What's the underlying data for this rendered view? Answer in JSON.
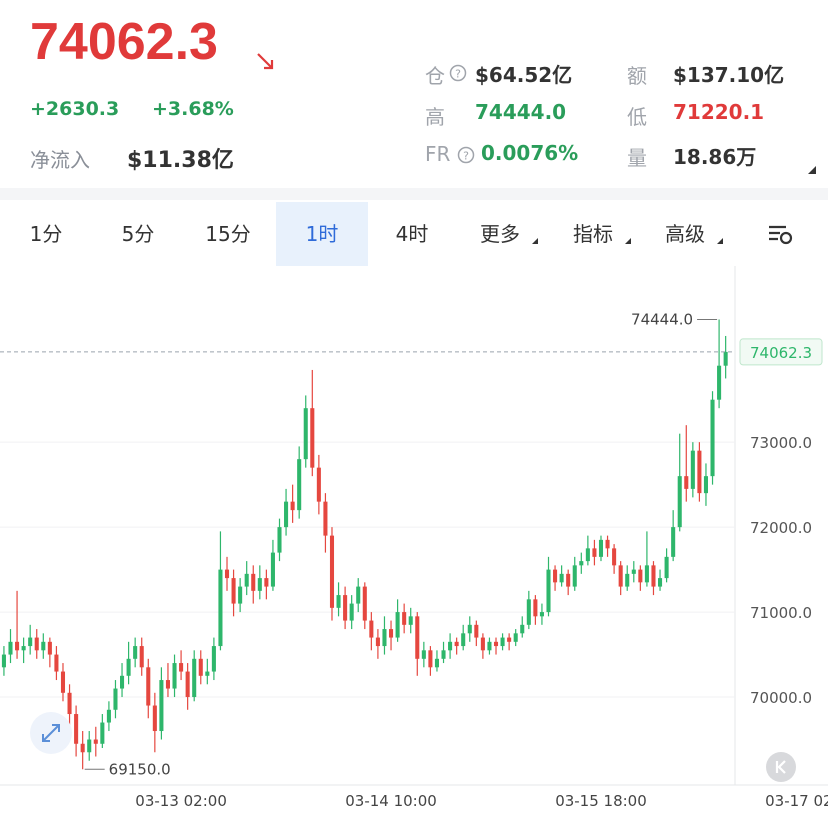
{
  "header": {
    "price": "74062.3",
    "change": "+2630.3",
    "change_pct": "+3.68%",
    "net_inflow_label": "净流入",
    "net_inflow": "$11.38亿",
    "stats": [
      {
        "label": "仓",
        "value": "$64.52亿"
      },
      {
        "label": "额",
        "value": "$137.10亿"
      },
      {
        "label": "高",
        "value": "74444.0"
      },
      {
        "label": "低",
        "value": "71220.1"
      },
      {
        "label": "FR",
        "value": "0.0076%"
      },
      {
        "label": "量",
        "value": "18.86万"
      }
    ]
  },
  "tabs": {
    "items": [
      "1分",
      "5分",
      "15分",
      "1时",
      "4时",
      "更多",
      "指标",
      "高级"
    ],
    "active": 3
  },
  "chart_data": {
    "type": "candlestick",
    "up_color": "#2eb66b",
    "down_color": "#e5473f",
    "grid": true,
    "ylim": [
      69000,
      75050
    ],
    "yticks": [
      {
        "value": 70000,
        "label": "70000.0"
      },
      {
        "value": 71000,
        "label": "71000.0"
      },
      {
        "value": 72000,
        "label": "72000.0"
      },
      {
        "value": 73000,
        "label": "73000.0"
      }
    ],
    "xlim": [
      -0.6,
      125.6
    ],
    "xticks": [
      {
        "value": 27,
        "label": "03-13 02:00"
      },
      {
        "value": 59,
        "label": "03-14 10:00"
      },
      {
        "value": 91,
        "label": "03-15 18:00"
      },
      {
        "value": 123,
        "label": "03-17 02:00"
      }
    ],
    "max_marker": {
      "index": 109,
      "value": 74444,
      "label": "74444.0"
    },
    "min_marker": {
      "index": 12,
      "value": 69150,
      "label": "69150.0"
    },
    "last_price": 74062.3,
    "ohlc": [
      [
        70350,
        70600,
        70250,
        70500
      ],
      [
        70500,
        70800,
        70400,
        70650
      ],
      [
        70650,
        71250,
        70450,
        70550
      ],
      [
        70550,
        70700,
        70400,
        70600
      ],
      [
        70600,
        70850,
        70500,
        70700
      ],
      [
        70700,
        70800,
        70450,
        70550
      ],
      [
        70550,
        70750,
        70450,
        70650
      ],
      [
        70650,
        70700,
        70350,
        70500
      ],
      [
        70500,
        70600,
        70200,
        70300
      ],
      [
        70300,
        70400,
        69950,
        70050
      ],
      [
        70050,
        70150,
        69650,
        69800
      ],
      [
        69800,
        69900,
        69300,
        69450
      ],
      [
        69450,
        69600,
        69150,
        69350
      ],
      [
        69350,
        69600,
        69250,
        69500
      ],
      [
        69500,
        69650,
        69300,
        69450
      ],
      [
        69450,
        69800,
        69400,
        69700
      ],
      [
        69700,
        69950,
        69600,
        69850
      ],
      [
        69850,
        70200,
        69750,
        70100
      ],
      [
        70100,
        70400,
        70000,
        70250
      ],
      [
        70250,
        70650,
        70150,
        70450
      ],
      [
        70450,
        70700,
        70350,
        70600
      ],
      [
        70600,
        70700,
        70250,
        70350
      ],
      [
        70350,
        70450,
        69750,
        69900
      ],
      [
        69900,
        70050,
        69350,
        69600
      ],
      [
        69600,
        70350,
        69500,
        70200
      ],
      [
        70200,
        70400,
        70000,
        70100
      ],
      [
        70100,
        70500,
        70000,
        70400
      ],
      [
        70400,
        70550,
        70200,
        70300
      ],
      [
        70300,
        70400,
        69850,
        70000
      ],
      [
        70000,
        70550,
        69950,
        70450
      ],
      [
        70450,
        70550,
        70150,
        70250
      ],
      [
        70250,
        70450,
        70150,
        70300
      ],
      [
        70300,
        70700,
        70200,
        70600
      ],
      [
        70600,
        71950,
        70550,
        71500
      ],
      [
        71500,
        71650,
        71250,
        71400
      ],
      [
        71400,
        71500,
        70950,
        71100
      ],
      [
        71100,
        71400,
        71000,
        71300
      ],
      [
        71300,
        71600,
        71200,
        71450
      ],
      [
        71450,
        71550,
        71100,
        71250
      ],
      [
        71250,
        71550,
        71150,
        71400
      ],
      [
        71400,
        71500,
        71150,
        71300
      ],
      [
        71300,
        71850,
        71250,
        71700
      ],
      [
        71700,
        72100,
        71600,
        72000
      ],
      [
        72000,
        72450,
        71900,
        72300
      ],
      [
        72300,
        72500,
        72050,
        72200
      ],
      [
        72200,
        72950,
        72100,
        72800
      ],
      [
        72800,
        73550,
        72700,
        73400
      ],
      [
        73400,
        73850,
        72600,
        72700
      ],
      [
        72700,
        72850,
        72150,
        72300
      ],
      [
        72300,
        72400,
        71700,
        71900
      ],
      [
        71900,
        72000,
        70900,
        71050
      ],
      [
        71050,
        71350,
        70950,
        71200
      ],
      [
        71200,
        71300,
        70800,
        70900
      ],
      [
        70900,
        71200,
        70800,
        71100
      ],
      [
        71100,
        71400,
        71000,
        71300
      ],
      [
        71300,
        71350,
        70800,
        70900
      ],
      [
        70900,
        71000,
        70550,
        70700
      ],
      [
        70700,
        70800,
        70450,
        70600
      ],
      [
        70600,
        70950,
        70500,
        70800
      ],
      [
        70800,
        70900,
        70550,
        70700
      ],
      [
        70700,
        71150,
        70650,
        71000
      ],
      [
        71000,
        71100,
        70750,
        70850
      ],
      [
        70850,
        71050,
        70750,
        70950
      ],
      [
        70950,
        71000,
        70250,
        70450
      ],
      [
        70450,
        70650,
        70350,
        70550
      ],
      [
        70550,
        70600,
        70250,
        70350
      ],
      [
        70350,
        70550,
        70300,
        70450
      ],
      [
        70450,
        70650,
        70400,
        70550
      ],
      [
        70550,
        70750,
        70450,
        70650
      ],
      [
        70650,
        70700,
        70500,
        70600
      ],
      [
        70600,
        70850,
        70550,
        70750
      ],
      [
        70750,
        70950,
        70650,
        70850
      ],
      [
        70850,
        70900,
        70600,
        70700
      ],
      [
        70700,
        70750,
        70450,
        70550
      ],
      [
        70550,
        70700,
        70500,
        70650
      ],
      [
        70650,
        70700,
        70500,
        70600
      ],
      [
        70600,
        70750,
        70550,
        70700
      ],
      [
        70700,
        70750,
        70550,
        70650
      ],
      [
        70650,
        70800,
        70600,
        70750
      ],
      [
        70750,
        70950,
        70700,
        70850
      ],
      [
        70850,
        71250,
        70800,
        71150
      ],
      [
        71150,
        71200,
        70850,
        70950
      ],
      [
        70950,
        71100,
        70850,
        71000
      ],
      [
        71000,
        71650,
        70950,
        71500
      ],
      [
        71500,
        71550,
        71250,
        71350
      ],
      [
        71350,
        71550,
        71300,
        71450
      ],
      [
        71450,
        71500,
        71200,
        71300
      ],
      [
        71300,
        71650,
        71250,
        71550
      ],
      [
        71550,
        71700,
        71450,
        71600
      ],
      [
        71600,
        71900,
        71550,
        71750
      ],
      [
        71750,
        71850,
        71550,
        71650
      ],
      [
        71650,
        71900,
        71600,
        71850
      ],
      [
        71850,
        71900,
        71650,
        71750
      ],
      [
        71750,
        71800,
        71450,
        71550
      ],
      [
        71550,
        71600,
        71200,
        71300
      ],
      [
        71300,
        71550,
        71250,
        71450
      ],
      [
        71450,
        71600,
        71350,
        71500
      ],
      [
        71500,
        71550,
        71250,
        71350
      ],
      [
        71350,
        71950,
        71300,
        71550
      ],
      [
        71550,
        71600,
        71200,
        71300
      ],
      [
        71300,
        71500,
        71250,
        71400
      ],
      [
        71400,
        71750,
        71350,
        71650
      ],
      [
        71650,
        72200,
        71600,
        72000
      ],
      [
        72000,
        73100,
        71950,
        72600
      ],
      [
        72600,
        73200,
        72300,
        72450
      ],
      [
        72450,
        73000,
        72350,
        72900
      ],
      [
        72900,
        73000,
        72300,
        72400
      ],
      [
        72400,
        72750,
        72250,
        72600
      ],
      [
        72600,
        73600,
        72500,
        73500
      ],
      [
        73500,
        74444,
        73400,
        73900
      ],
      [
        73900,
        74250,
        73750,
        74062.3
      ]
    ]
  }
}
